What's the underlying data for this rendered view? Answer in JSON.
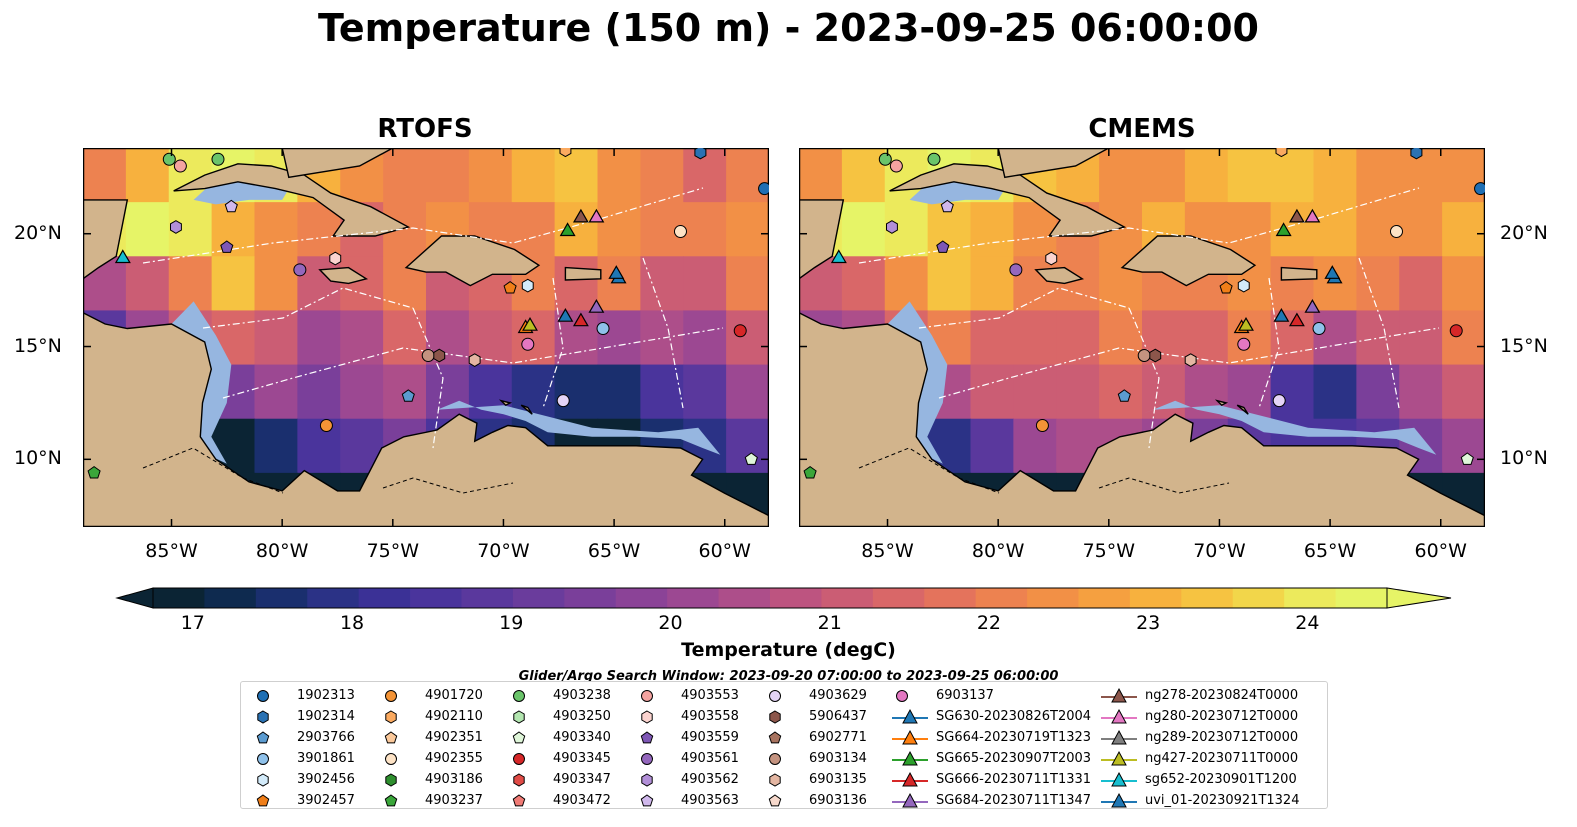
{
  "title": "Temperature (150 m) - 2023-09-25 06:00:00",
  "panels": [
    {
      "title": "RTOFS"
    },
    {
      "title": "CMEMS"
    }
  ],
  "axes": {
    "lon_ticks": [
      "85°W",
      "80°W",
      "75°W",
      "70°W",
      "65°W",
      "60°W"
    ],
    "lat_ticks": [
      "20°N",
      "15°N",
      "10°N"
    ],
    "lon_range": [
      -89,
      -58
    ],
    "lat_range": [
      7,
      23.8
    ]
  },
  "colorbar": {
    "label": "Temperature (degC)",
    "ticks": [
      "17",
      "18",
      "19",
      "20",
      "21",
      "22",
      "23",
      "24"
    ],
    "range": [
      16.75,
      24.5
    ],
    "colors": [
      "#0b2434",
      "#0e2a4f",
      "#1a2f6e",
      "#2b3286",
      "#3b3196",
      "#4a349c",
      "#5a389d",
      "#6a3c9c",
      "#7a3f9a",
      "#8b4397",
      "#9c4892",
      "#ad4e8a",
      "#bd5480",
      "#cb5d74",
      "#d96768",
      "#e4735c",
      "#ed8250",
      "#f29046",
      "#f5a040",
      "#f7b13e",
      "#f6c341",
      "#f2d64a",
      "#ecea5c",
      "#e6f467"
    ]
  },
  "search_window": "Glider/Argo Search Window: 2023-09-20 07:00:00 to 2023-09-25 06:00:00",
  "legend": {
    "columns": [
      [
        {
          "label": "1902313",
          "marker": "circle",
          "color": "#1f6fb4"
        },
        {
          "label": "1902314",
          "marker": "hexagon",
          "color": "#2a72b3"
        },
        {
          "label": "2903766",
          "marker": "pentagon",
          "color": "#5b9bd0"
        },
        {
          "label": "3901861",
          "marker": "circle",
          "color": "#8fc1ea"
        },
        {
          "label": "3902456",
          "marker": "hexagon",
          "color": "#d3ebfa"
        },
        {
          "label": "3902457",
          "marker": "pentagon",
          "color": "#f07e18"
        }
      ],
      [
        {
          "label": "4901720",
          "marker": "circle",
          "color": "#f49436"
        },
        {
          "label": "4902110",
          "marker": "hexagon",
          "color": "#fbaa60"
        },
        {
          "label": "4902351",
          "marker": "pentagon",
          "color": "#fbc99b"
        },
        {
          "label": "4902355",
          "marker": "circle",
          "color": "#fde3c6"
        },
        {
          "label": "4903186",
          "marker": "hexagon",
          "color": "#2e8f2e"
        },
        {
          "label": "4903237",
          "marker": "pentagon",
          "color": "#3aa63a"
        }
      ],
      [
        {
          "label": "4903238",
          "marker": "circle",
          "color": "#6ac46a"
        },
        {
          "label": "4903250",
          "marker": "hexagon",
          "color": "#b3e6b0"
        },
        {
          "label": "4903340",
          "marker": "pentagon",
          "color": "#dff6d9"
        },
        {
          "label": "4903345",
          "marker": "circle",
          "color": "#d62728"
        },
        {
          "label": "4903347",
          "marker": "hexagon",
          "color": "#e04b46"
        },
        {
          "label": "4903472",
          "marker": "pentagon",
          "color": "#f07b76"
        }
      ],
      [
        {
          "label": "4903553",
          "marker": "circle",
          "color": "#f4a3a0"
        },
        {
          "label": "4903558",
          "marker": "hexagon",
          "color": "#fbd3cf"
        },
        {
          "label": "4903559",
          "marker": "pentagon",
          "color": "#7e57b5"
        },
        {
          "label": "4903561",
          "marker": "circle",
          "color": "#9467bd"
        },
        {
          "label": "4903562",
          "marker": "hexagon",
          "color": "#b28fd8"
        },
        {
          "label": "4903563",
          "marker": "pentagon",
          "color": "#d0b8ec"
        }
      ],
      [
        {
          "label": "4903629",
          "marker": "circle",
          "color": "#e4d4f6"
        },
        {
          "label": "5906437",
          "marker": "hexagon",
          "color": "#8c564b"
        },
        {
          "label": "6902771",
          "marker": "pentagon",
          "color": "#a8735f"
        },
        {
          "label": "6903134",
          "marker": "circle",
          "color": "#c49380"
        },
        {
          "label": "6903135",
          "marker": "hexagon",
          "color": "#e4b6a2"
        },
        {
          "label": "6903136",
          "marker": "pentagon",
          "color": "#f7d9cc"
        }
      ],
      [
        {
          "label": "6903137",
          "marker": "circle",
          "color": "#e377c2"
        },
        {
          "label": "SG630-20230826T2004",
          "marker": "triangle-line",
          "color": "#1f77b4"
        },
        {
          "label": "SG664-20230719T1323",
          "marker": "triangle-line",
          "color": "#ff7f0e"
        },
        {
          "label": "SG665-20230907T2003",
          "marker": "triangle-line",
          "color": "#2ca02c"
        },
        {
          "label": "SG666-20230711T1331",
          "marker": "triangle-line",
          "color": "#d62728"
        },
        {
          "label": "SG684-20230711T1347",
          "marker": "triangle-line",
          "color": "#9467bd"
        }
      ],
      [
        {
          "label": "ng278-20230824T0000",
          "marker": "triangle-line",
          "color": "#8c564b"
        },
        {
          "label": "ng280-20230712T0000",
          "marker": "triangle-line",
          "color": "#e377c2"
        },
        {
          "label": "ng289-20230712T0000",
          "marker": "triangle-line",
          "color": "#7f7f7f"
        },
        {
          "label": "ng427-20230711T0000",
          "marker": "triangle-line",
          "color": "#bcbd22"
        },
        {
          "label": "sg652-20230901T1200",
          "marker": "triangle-line",
          "color": "#17becf"
        },
        {
          "label": "uvi_01-20230921T1324",
          "marker": "triangle-line",
          "color": "#1f77b4"
        }
      ]
    ]
  },
  "chart_data": [
    {
      "type": "heatmap",
      "title": "RTOFS",
      "variable": "Temperature (150 m)",
      "units": "degC",
      "lon_range": [
        -89,
        -58
      ],
      "lat_range": [
        7,
        23.8
      ],
      "color_range": [
        16.75,
        24.5
      ],
      "grid": [
        [
          22,
          23,
          24,
          24.5,
          24,
          23,
          22.5,
          22,
          22,
          22.5,
          23,
          23.5,
          22.5,
          22,
          21.5,
          22
        ],
        [
          24,
          24.5,
          24,
          23,
          22.5,
          22,
          21.5,
          22,
          22.5,
          22,
          22,
          23,
          22.5,
          22,
          22,
          22.5
        ],
        [
          20.5,
          21,
          22,
          23.5,
          22.5,
          21,
          21.5,
          22,
          21,
          21.5,
          22,
          21.5,
          22,
          21,
          21,
          22
        ],
        [
          19,
          20,
          21,
          21.5,
          21,
          20,
          20.5,
          21.5,
          20.5,
          21,
          21.5,
          20.5,
          20,
          20.5,
          20,
          21
        ],
        [
          17,
          17,
          18.5,
          19.5,
          20,
          19.5,
          20,
          20.5,
          19.5,
          18.5,
          18,
          17.5,
          17.5,
          18.5,
          19,
          20
        ],
        [
          17,
          17,
          17,
          17,
          17.5,
          18.5,
          19,
          19.5,
          18.5,
          18,
          17.5,
          17,
          17,
          17.5,
          18,
          19
        ],
        [
          17,
          17,
          17,
          17,
          17,
          17,
          17,
          17,
          17,
          17,
          17,
          17,
          17,
          17,
          17,
          17
        ]
      ]
    },
    {
      "type": "heatmap",
      "title": "CMEMS",
      "variable": "Temperature (150 m)",
      "units": "degC",
      "lon_range": [
        -89,
        -58
      ],
      "lat_range": [
        7,
        23.8
      ],
      "color_range": [
        16.75,
        24.5
      ],
      "grid": [
        [
          22.5,
          23.5,
          24,
          24.5,
          24,
          23.5,
          23,
          22.5,
          22.5,
          23,
          23.5,
          23.5,
          23,
          22.5,
          22.5,
          22.5
        ],
        [
          24,
          24.5,
          24,
          23.5,
          23,
          22.5,
          22,
          22.5,
          23,
          22.5,
          22.5,
          23,
          23,
          22.5,
          22.5,
          23
        ],
        [
          21,
          21.5,
          22.5,
          23.5,
          23,
          22,
          22,
          22.5,
          22,
          22,
          22.5,
          22,
          22.5,
          22,
          21.5,
          22.5
        ],
        [
          20,
          20.5,
          21.5,
          22,
          21.5,
          21.5,
          21.5,
          22,
          21.5,
          21.5,
          22,
          21.5,
          20.5,
          21,
          21,
          22
        ],
        [
          17.5,
          18,
          19.5,
          20.5,
          21,
          21,
          21,
          21.5,
          21,
          20.5,
          20,
          18.5,
          18,
          19.5,
          20.5,
          21
        ],
        [
          17,
          17,
          17.5,
          18,
          19,
          20,
          20.5,
          20.5,
          20,
          19.5,
          19,
          18.5,
          18.5,
          19,
          19.5,
          20
        ],
        [
          17,
          17,
          17,
          17,
          17,
          17,
          17,
          17,
          17,
          17,
          17,
          17,
          17,
          17,
          17,
          17
        ]
      ]
    }
  ],
  "floats": [
    {
      "id": "4903238",
      "lon": -85.1,
      "lat": 23.3
    },
    {
      "id": "4903553",
      "lon": -84.6,
      "lat": 23.0
    },
    {
      "id": "4903238",
      "lon": -82.9,
      "lat": 23.3
    },
    {
      "id": "4902110",
      "lon": -67.2,
      "lat": 23.7
    },
    {
      "id": "1902314",
      "lon": -61.1,
      "lat": 23.6
    },
    {
      "id": "1902313",
      "lon": -58.2,
      "lat": 22.0
    },
    {
      "id": "4903563",
      "lon": -82.3,
      "lat": 21.2
    },
    {
      "id": "4903562",
      "lon": -84.8,
      "lat": 20.3
    },
    {
      "id": "4903559",
      "lon": -82.5,
      "lat": 19.4
    },
    {
      "id": "4903561",
      "lon": -79.2,
      "lat": 18.4
    },
    {
      "id": "4903558",
      "lon": -77.6,
      "lat": 18.9
    },
    {
      "id": "4902355",
      "lon": -62.0,
      "lat": 20.1
    },
    {
      "id": "3902457",
      "lon": -69.7,
      "lat": 17.6
    },
    {
      "id": "3902456",
      "lon": -68.9,
      "lat": 17.7
    },
    {
      "id": "3901861",
      "lon": -65.5,
      "lat": 15.8
    },
    {
      "id": "6903137",
      "lon": -68.9,
      "lat": 15.1
    },
    {
      "id": "4903345",
      "lon": -59.3,
      "lat": 15.7
    },
    {
      "id": "6903134",
      "lon": -73.4,
      "lat": 14.6
    },
    {
      "id": "5906437",
      "lon": -72.9,
      "lat": 14.6
    },
    {
      "id": "6903135",
      "lon": -71.3,
      "lat": 14.4
    },
    {
      "id": "2903766",
      "lon": -74.3,
      "lat": 12.8
    },
    {
      "id": "4903629",
      "lon": -67.3,
      "lat": 12.6
    },
    {
      "id": "4901720",
      "lon": -78.0,
      "lat": 11.5
    },
    {
      "id": "4903340",
      "lon": -58.8,
      "lat": 10.0
    },
    {
      "id": "4903237",
      "lon": -88.5,
      "lat": 9.4
    }
  ],
  "gliders": [
    {
      "id": "sg652-20230901T1200",
      "lon": -87.2,
      "lat": 18.9
    },
    {
      "id": "SG665-20230907T2003",
      "lon": -67.1,
      "lat": 20.1
    },
    {
      "id": "ng278-20230824T0000",
      "lon": -66.5,
      "lat": 20.7
    },
    {
      "id": "ng280-20230712T0000",
      "lon": -65.8,
      "lat": 20.7
    },
    {
      "id": "SG630-20230826T2004",
      "lon": -64.8,
      "lat": 18.0
    },
    {
      "id": "uvi_01-20230921T1324",
      "lon": -64.9,
      "lat": 18.2
    },
    {
      "id": "SG684-20230711T1347",
      "lon": -65.8,
      "lat": 16.7
    },
    {
      "id": "SG630-20230826T2004",
      "lon": -67.2,
      "lat": 16.3
    },
    {
      "id": "SG666-20230711T1331",
      "lon": -66.5,
      "lat": 16.1
    },
    {
      "id": "SG664-20230719T1323",
      "lon": -69.0,
      "lat": 15.8
    },
    {
      "id": "ng427-20230711T0000",
      "lon": -68.8,
      "lat": 15.9
    }
  ]
}
